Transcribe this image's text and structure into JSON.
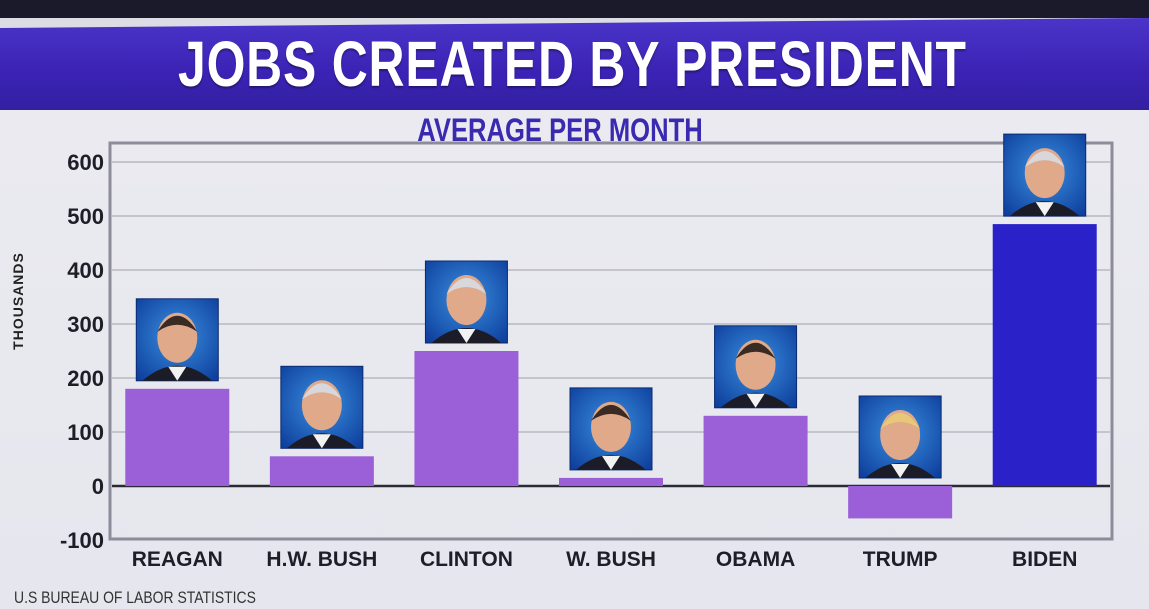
{
  "chart_data": {
    "type": "bar",
    "title": "JOBS CREATED BY PRESIDENT",
    "subtitle": "AVERAGE PER MONTH",
    "ylabel": "THOUSANDS",
    "xlabel": "",
    "source": "U.S BUREAU OF LABOR STATISTICS",
    "ylim": [
      -100,
      600
    ],
    "yticks": [
      600,
      500,
      400,
      300,
      200,
      100,
      0,
      -100
    ],
    "grid": true,
    "categories": [
      "REAGAN",
      "H.W. BUSH",
      "CLINTON",
      "W. BUSH",
      "OBAMA",
      "TRUMP",
      "BIDEN"
    ],
    "values": [
      180,
      55,
      250,
      15,
      130,
      -60,
      485
    ],
    "colors": [
      "#9b5fd8",
      "#9b5fd8",
      "#9b5fd8",
      "#9b5fd8",
      "#9b5fd8",
      "#9b5fd8",
      "#2a22c8"
    ]
  }
}
